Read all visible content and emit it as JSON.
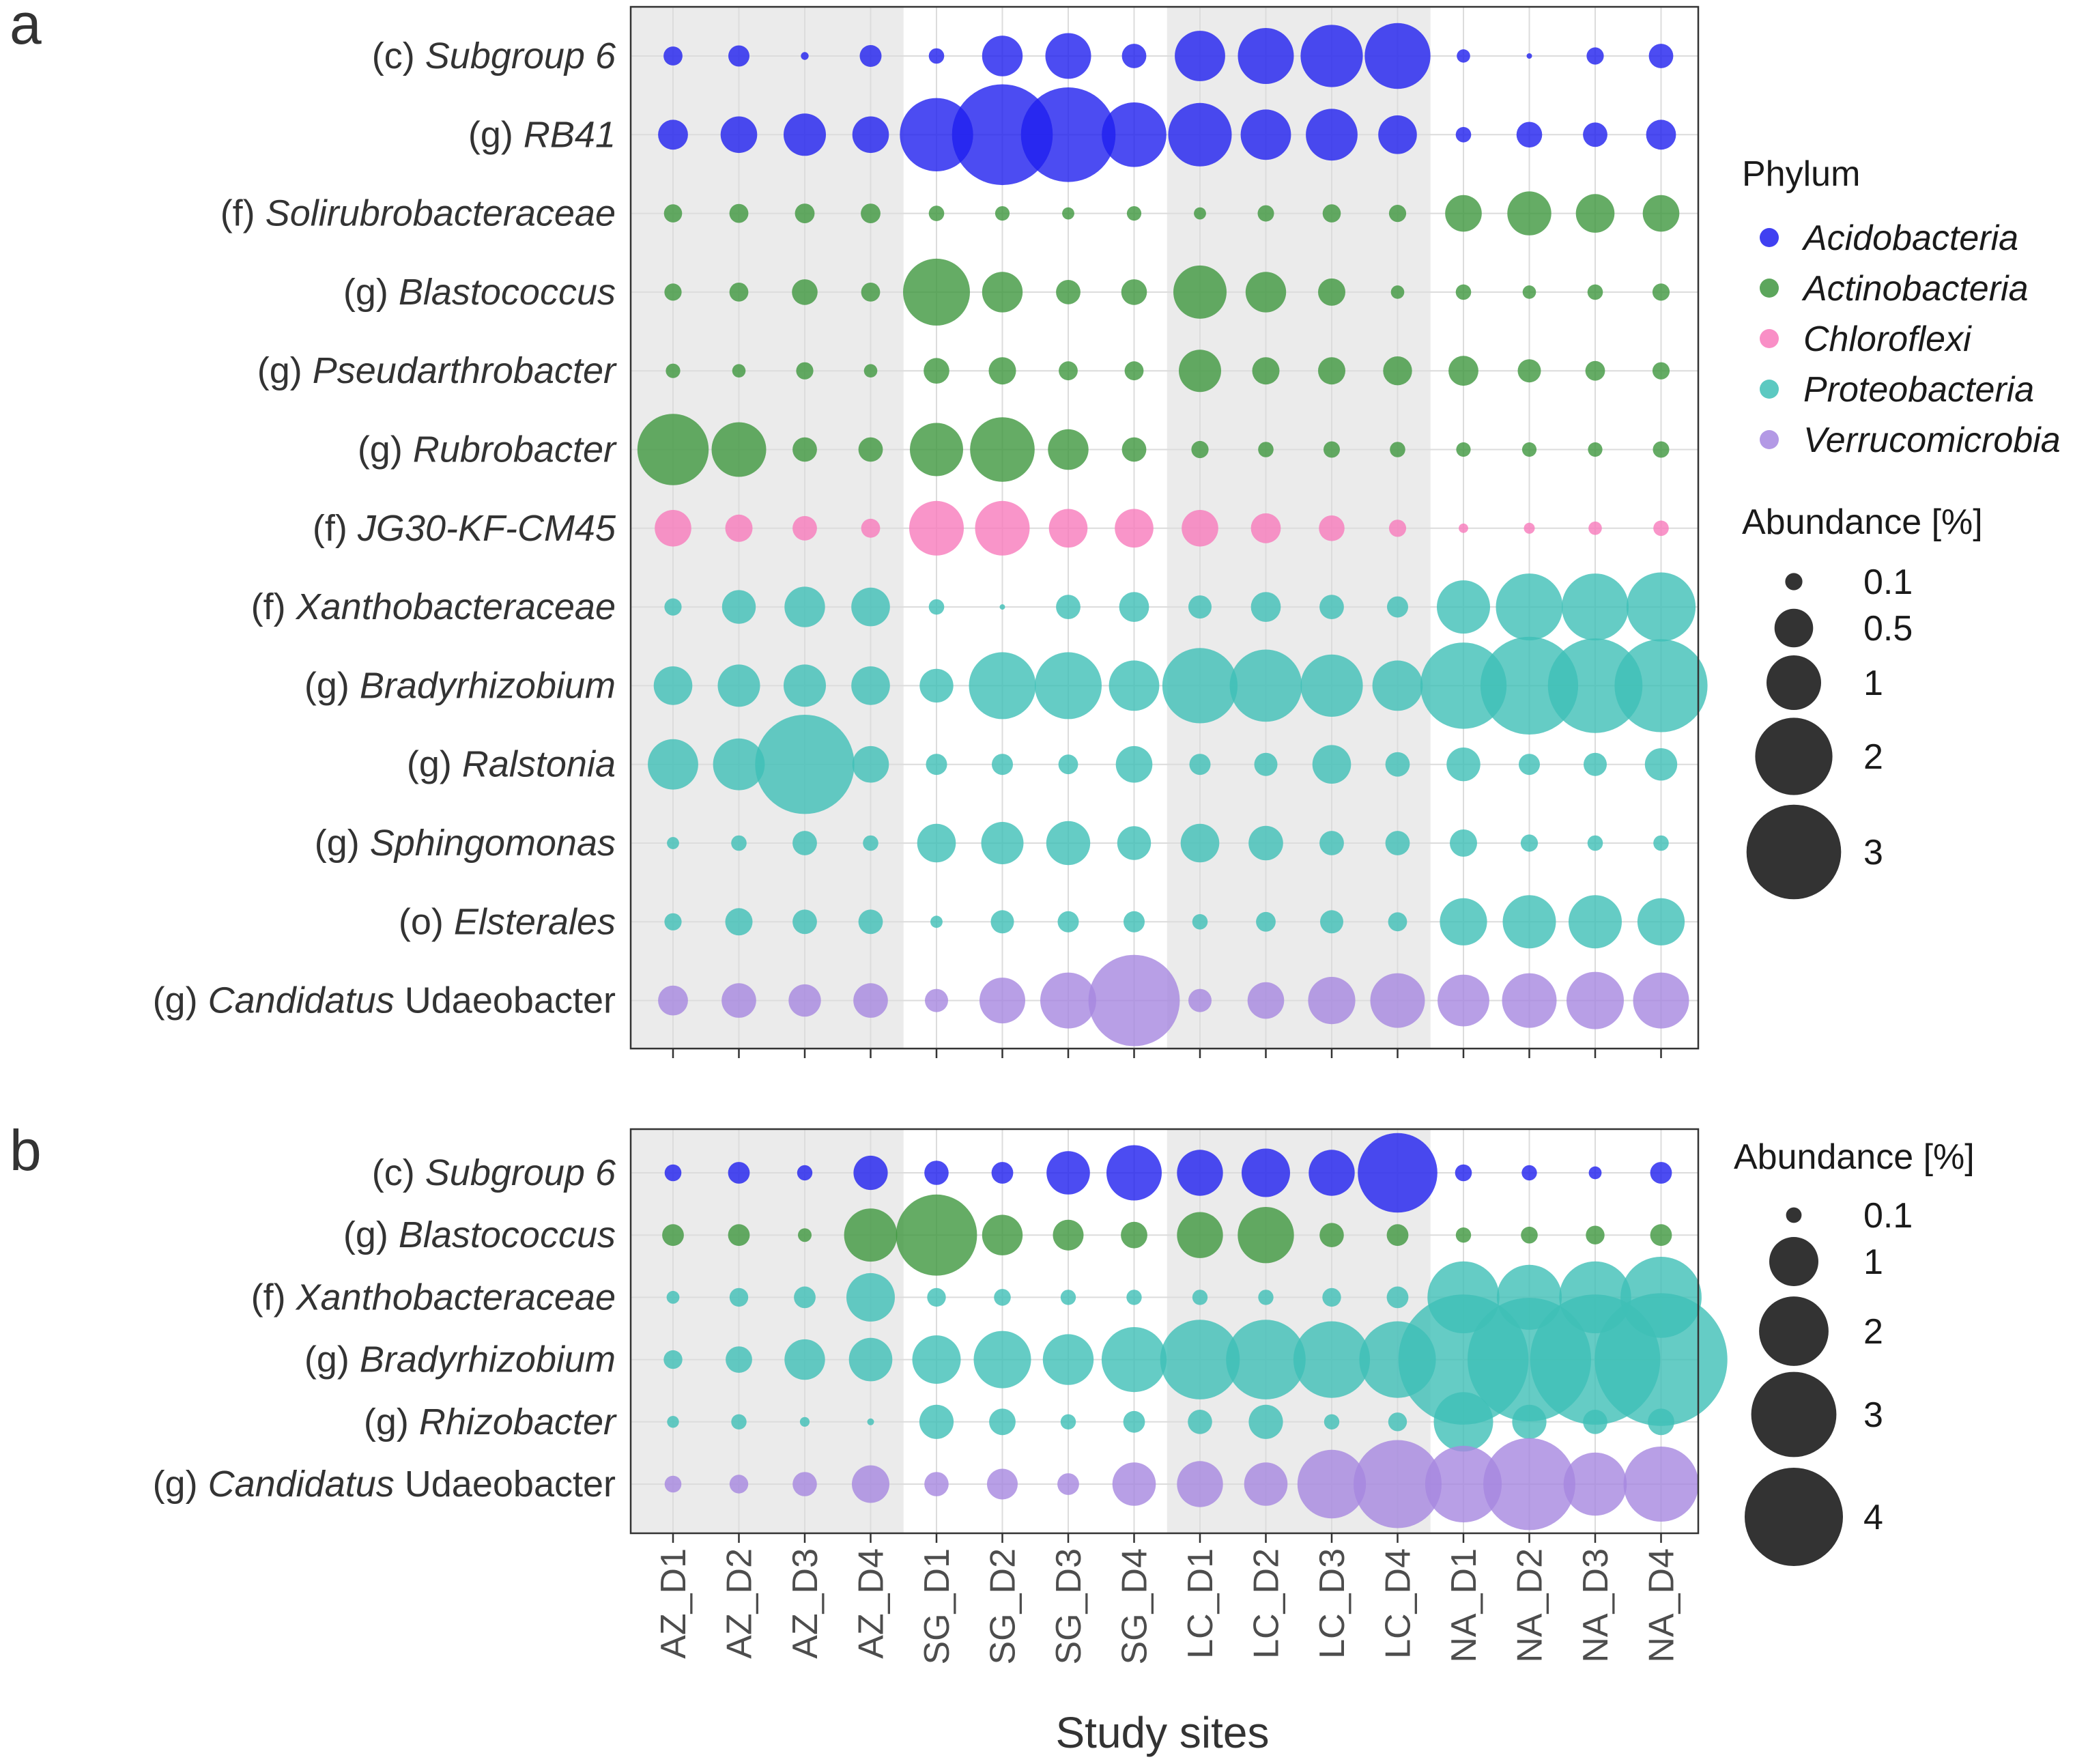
{
  "panel_letters": [
    "a",
    "b"
  ],
  "x_axis_title": "Study sites",
  "phylum_legend": {
    "title": "Phylum",
    "items": [
      {
        "name": "Acidobacteria",
        "color": "#1f1fef"
      },
      {
        "name": "Actinobacteria",
        "color": "#3f973f"
      },
      {
        "name": "Chloroflexi",
        "color": "#f87bbc"
      },
      {
        "name": "Proteobacteria",
        "color": "#3fbfb6"
      },
      {
        "name": "Verrucomicrobia",
        "color": "#a687e0"
      }
    ]
  },
  "chart_data": [
    {
      "type": "scatter",
      "subtype": "bubble",
      "panel": "a",
      "size_legend_title": "Abundance [%]",
      "size_legend": [
        0.1,
        0.5,
        1,
        2,
        3
      ],
      "categories": [
        "AZ_D1",
        "AZ_D2",
        "AZ_D3",
        "AZ_D4",
        "SG_D1",
        "SG_D2",
        "SG_D3",
        "SG_D4",
        "LC_D1",
        "LC_D2",
        "LC_D3",
        "LC_D4",
        "NA_D1",
        "NA_D2",
        "NA_D3",
        "NA_D4"
      ],
      "shaded_groups": [
        "AZ",
        "LC"
      ],
      "series": [
        {
          "rank": "(c)",
          "name": "Subgroup 6",
          "phylum": "Acidobacteria",
          "values": [
            0.12,
            0.15,
            0.02,
            0.16,
            0.08,
            0.55,
            0.7,
            0.2,
            0.85,
            1.05,
            1.3,
            1.45,
            0.06,
            0.01,
            0.1,
            0.2
          ]
        },
        {
          "rank": "(g)",
          "name": "RB41",
          "phylum": "Acidobacteria",
          "values": [
            0.3,
            0.45,
            0.6,
            0.45,
            1.8,
            3.4,
            3.0,
            1.4,
            1.35,
            0.85,
            0.9,
            0.5,
            0.08,
            0.22,
            0.2,
            0.3
          ]
        },
        {
          "rank": "(f)",
          "name": "Solirubrobacteraceae",
          "phylum": "Actinobacteria",
          "values": [
            0.11,
            0.12,
            0.13,
            0.13,
            0.08,
            0.07,
            0.05,
            0.07,
            0.05,
            0.09,
            0.11,
            0.1,
            0.45,
            0.65,
            0.5,
            0.45
          ]
        },
        {
          "rank": "(g)",
          "name": "Blastococcus",
          "phylum": "Actinobacteria",
          "values": [
            0.1,
            0.12,
            0.22,
            0.12,
            1.5,
            0.55,
            0.2,
            0.22,
            0.95,
            0.55,
            0.25,
            0.06,
            0.08,
            0.06,
            0.08,
            0.1
          ]
        },
        {
          "rank": "(g)",
          "name": "Pseudarthrobacter",
          "phylum": "Actinobacteria",
          "values": [
            0.07,
            0.06,
            0.1,
            0.06,
            0.22,
            0.25,
            0.12,
            0.12,
            0.6,
            0.25,
            0.25,
            0.28,
            0.3,
            0.18,
            0.13,
            0.1
          ]
        },
        {
          "rank": "(g)",
          "name": "Rubrobacter",
          "phylum": "Actinobacteria",
          "values": [
            1.7,
            1.0,
            0.2,
            0.2,
            0.95,
            1.4,
            0.55,
            0.2,
            0.1,
            0.08,
            0.09,
            0.08,
            0.07,
            0.07,
            0.07,
            0.09
          ]
        },
        {
          "rank": "(f)",
          "name": "JG30-KF-CM45",
          "phylum": "Chloroflexi",
          "values": [
            0.45,
            0.25,
            0.2,
            0.12,
            1.0,
            1.0,
            0.5,
            0.5,
            0.45,
            0.3,
            0.22,
            0.1,
            0.03,
            0.04,
            0.06,
            0.08
          ]
        },
        {
          "rank": "(f)",
          "name": "Xanthobacteraceae",
          "phylum": "Proteobacteria",
          "values": [
            0.1,
            0.38,
            0.55,
            0.5,
            0.08,
            0.01,
            0.2,
            0.3,
            0.18,
            0.3,
            0.2,
            0.15,
            0.95,
            1.5,
            1.5,
            1.6
          ]
        },
        {
          "rank": "(g)",
          "name": "Bradyrhizobium",
          "phylum": "Proteobacteria",
          "values": [
            0.5,
            0.6,
            0.6,
            0.5,
            0.38,
            1.5,
            1.5,
            0.85,
            1.9,
            1.75,
            1.3,
            0.85,
            2.5,
            3.2,
            3.0,
            2.9
          ]
        },
        {
          "rank": "(g)",
          "name": "Ralstonia",
          "phylum": "Proteobacteria",
          "values": [
            0.85,
            0.9,
            3.3,
            0.45,
            0.15,
            0.15,
            0.13,
            0.45,
            0.15,
            0.18,
            0.5,
            0.2,
            0.38,
            0.15,
            0.18,
            0.35
          ]
        },
        {
          "rank": "(g)",
          "name": "Sphingomonas",
          "phylum": "Proteobacteria",
          "values": [
            0.05,
            0.08,
            0.2,
            0.08,
            0.5,
            0.6,
            0.65,
            0.38,
            0.5,
            0.4,
            0.2,
            0.2,
            0.25,
            0.1,
            0.08,
            0.08
          ]
        },
        {
          "rank": "(o)",
          "name": "Elsterales",
          "phylum": "Proteobacteria",
          "values": [
            0.1,
            0.25,
            0.2,
            0.2,
            0.05,
            0.18,
            0.15,
            0.15,
            0.08,
            0.13,
            0.18,
            0.12,
            0.75,
            0.95,
            0.95,
            0.75
          ]
        },
        {
          "rank": "(g)",
          "name": "Candidatus Udaeobacter",
          "name_italic": "Candidatus",
          "name_plain": "Udaeobacter",
          "phylum": "Verrucomicrobia",
          "values": [
            0.3,
            0.4,
            0.35,
            0.4,
            0.18,
            0.7,
            1.05,
            2.8,
            0.18,
            0.45,
            0.75,
            1.0,
            0.9,
            1.0,
            1.1,
            1.05
          ]
        }
      ]
    },
    {
      "type": "scatter",
      "subtype": "bubble",
      "panel": "b",
      "size_legend_title": "Abundance [%]",
      "size_legend": [
        0.1,
        1,
        2,
        3,
        4
      ],
      "categories": [
        "AZ_D1",
        "AZ_D2",
        "AZ_D3",
        "AZ_D4",
        "SG_D1",
        "SG_D2",
        "SG_D3",
        "SG_D4",
        "LC_D1",
        "LC_D2",
        "LC_D3",
        "LC_D4",
        "NA_D1",
        "NA_D2",
        "NA_D3",
        "NA_D4"
      ],
      "shaded_groups": [
        "AZ",
        "LC"
      ],
      "series": [
        {
          "rank": "(c)",
          "name": "Subgroup 6",
          "phylum": "Acidobacteria",
          "values": [
            0.12,
            0.2,
            0.1,
            0.5,
            0.25,
            0.2,
            0.8,
            1.3,
            0.9,
            1.0,
            0.9,
            2.7,
            0.12,
            0.1,
            0.07,
            0.2
          ]
        },
        {
          "rank": "(g)",
          "name": "Blastococcus",
          "phylum": "Actinobacteria",
          "values": [
            0.2,
            0.2,
            0.08,
            1.2,
            2.8,
            0.7,
            0.4,
            0.3,
            0.9,
            1.35,
            0.25,
            0.2,
            0.1,
            0.12,
            0.15,
            0.2
          ]
        },
        {
          "rank": "(f)",
          "name": "Xanthobacteraceae",
          "phylum": "Proteobacteria",
          "values": [
            0.07,
            0.15,
            0.2,
            1.0,
            0.15,
            0.12,
            0.1,
            0.1,
            0.1,
            0.1,
            0.15,
            0.2,
            2.2,
            1.8,
            2.2,
            2.8
          ]
        },
        {
          "rank": "(g)",
          "name": "Bradyrhizobium",
          "phylum": "Proteobacteria",
          "values": [
            0.15,
            0.3,
            0.7,
            0.8,
            1.0,
            1.4,
            1.1,
            1.8,
            2.7,
            2.7,
            2.5,
            2.5,
            7.2,
            6.5,
            7.2,
            7.5
          ]
        },
        {
          "rank": "(g)",
          "name": "Rhizobacter",
          "phylum": "Proteobacteria",
          "values": [
            0.06,
            0.1,
            0.04,
            0.02,
            0.5,
            0.3,
            0.1,
            0.2,
            0.25,
            0.5,
            0.1,
            0.15,
            1.5,
            0.5,
            0.25,
            0.3
          ]
        },
        {
          "rank": "(g)",
          "name": "Candidatus Udaeobacter",
          "name_italic": "Candidatus",
          "name_plain": "Udaeobacter",
          "phylum": "Verrucomicrobia",
          "values": [
            0.12,
            0.15,
            0.25,
            0.6,
            0.25,
            0.4,
            0.2,
            0.8,
            0.9,
            0.8,
            2.0,
            3.3,
            2.5,
            3.6,
            1.7,
            2.4
          ]
        }
      ]
    }
  ]
}
